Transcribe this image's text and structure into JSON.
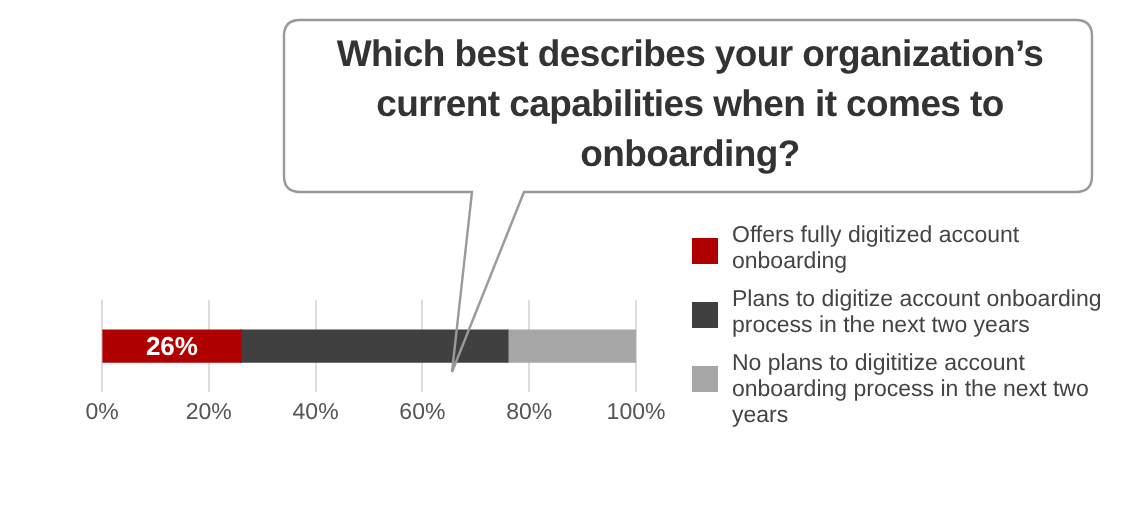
{
  "chart_data": {
    "type": "bar",
    "orientation": "horizontal",
    "stacked": true,
    "title": "Which best describes your organization’s current capabilities when it comes to onboarding?",
    "categories": [
      null
    ],
    "series": [
      {
        "name": "Offers fully digitized account onboarding",
        "color": "#b00000",
        "values": [
          26
        ],
        "value_labels": [
          "26%"
        ]
      },
      {
        "name": "Plans to digitize account onboarding process in the next two years",
        "color": "#404040",
        "values": [
          50
        ],
        "value_labels": [
          null
        ]
      },
      {
        "name": "No plans to digititize account onboarding process in the next two years",
        "color": "#a6a6a6",
        "values": [
          24
        ],
        "value_labels": [
          null
        ]
      }
    ],
    "xlim": [
      0,
      100
    ],
    "xticks": [
      {
        "value": 0,
        "label": "0%"
      },
      {
        "value": 20,
        "label": "20%"
      },
      {
        "value": 40,
        "label": "40%"
      },
      {
        "value": 60,
        "label": "60%"
      },
      {
        "value": 80,
        "label": "80%"
      },
      {
        "value": 100,
        "label": "100%"
      }
    ],
    "grid": "x",
    "legend": "right",
    "tick_labels": "x"
  }
}
